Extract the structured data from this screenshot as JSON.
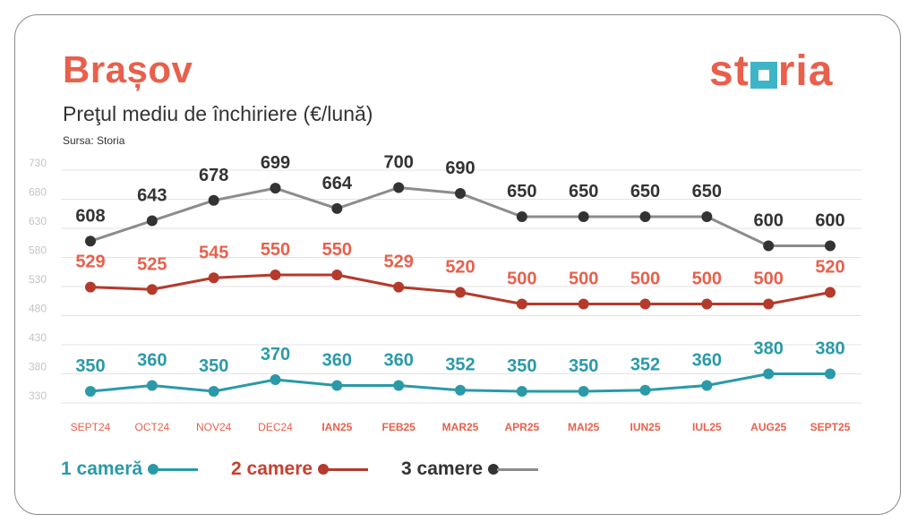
{
  "header": {
    "city": "Brașov",
    "subtitle": "Preţul mediu de închiriere (€/lună)",
    "source": "Sursa: Storia",
    "logo_left": "st",
    "logo_right": "ria"
  },
  "colors": {
    "accent": "#e8604c",
    "teal": "#2a9aa8",
    "red": "#b43a2c",
    "gray": "#8c8c8c",
    "dark": "#333333"
  },
  "chart_data": {
    "type": "line",
    "categories": [
      "SEPT24",
      "OCT24",
      "NOV24",
      "DEC24",
      "IAN25",
      "FEB25",
      "MAR25",
      "APR25",
      "MAI25",
      "IUN25",
      "IUL25",
      "AUG25",
      "SEPT25"
    ],
    "ylim": [
      330,
      730
    ],
    "yticks": [
      730,
      680,
      630,
      580,
      530,
      480,
      430,
      380,
      330
    ],
    "grid": true,
    "series": [
      {
        "name": "3 camere",
        "values": [
          608,
          643,
          678,
          699,
          664,
          700,
          690,
          650,
          650,
          650,
          650,
          600,
          600
        ]
      },
      {
        "name": "2 camere",
        "values": [
          529,
          525,
          545,
          550,
          550,
          529,
          520,
          500,
          500,
          500,
          500,
          500,
          520
        ]
      },
      {
        "name": "1 cameră",
        "values": [
          350,
          360,
          350,
          370,
          360,
          360,
          352,
          350,
          350,
          352,
          360,
          380,
          380
        ]
      }
    ]
  },
  "legend": [
    {
      "label": "1 cameră",
      "series": 2
    },
    {
      "label": "2 camere",
      "series": 1
    },
    {
      "label": "3 camere",
      "series": 0
    }
  ]
}
